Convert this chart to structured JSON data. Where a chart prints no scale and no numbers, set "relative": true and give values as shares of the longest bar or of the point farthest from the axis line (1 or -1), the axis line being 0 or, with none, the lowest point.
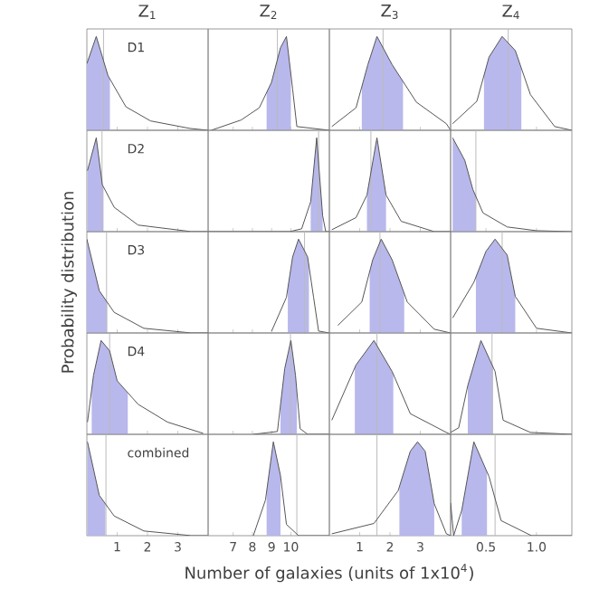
{
  "chart_data": [
    {
      "type": "line",
      "relative": true,
      "title": "Z$_{1}$",
      "annotations": [
        "D1"
      ],
      "xlim": [
        0,
        4
      ],
      "xticks": [
        1,
        2,
        3
      ],
      "tick_labels": false,
      "series": [
        {
          "type": "area",
          "color": "#b8b8ec",
          "x": [
            0,
            0.31,
            0.7,
            0.76
          ],
          "values": [
            0.71,
            1.0,
            0.58,
            0.55
          ]
        },
        {
          "color": "#555555",
          "x": [
            0,
            0.31,
            0.7,
            1.29,
            2.1,
            3.4,
            4
          ],
          "values": [
            0.71,
            1.0,
            0.58,
            0.25,
            0.1,
            0.02,
            0
          ]
        }
      ],
      "ref_lines": [
        {
          "axis": "x",
          "value": 0.55,
          "color": "#bbbbbb"
        }
      ]
    },
    {
      "type": "line",
      "relative": true,
      "title": "Z$_{2}$",
      "xlim": [
        5.7,
        12
      ],
      "xticks": [
        7,
        8,
        9,
        10
      ],
      "tick_labels": false,
      "series": [
        {
          "type": "area",
          "color": "#b8b8ec",
          "x": [
            8.74,
            8.99,
            9.46,
            9.77,
            10.0
          ],
          "values": [
            0.4,
            0.51,
            0.88,
            1.0,
            0.6
          ]
        },
        {
          "color": "#555555",
          "x": [
            5.86,
            7.42,
            8.36,
            8.99,
            9.46,
            9.77,
            10.09,
            10.31,
            12
          ],
          "values": [
            0,
            0.11,
            0.24,
            0.51,
            0.88,
            1.0,
            0.44,
            0.04,
            0
          ]
        }
      ],
      "ref_lines": [
        {
          "axis": "x",
          "value": 9.3,
          "color": "#bbbbbb"
        }
      ]
    },
    {
      "type": "line",
      "relative": true,
      "title": "Z$_{3}$",
      "xlim": [
        0,
        4
      ],
      "xticks": [
        1,
        2,
        3
      ],
      "tick_labels": false,
      "series": [
        {
          "type": "area",
          "color": "#b8b8ec",
          "x": [
            1.07,
            1.27,
            1.57,
            2.07,
            2.43
          ],
          "values": [
            0.46,
            0.7,
            1.0,
            0.7,
            0.52
          ]
        },
        {
          "color": "#555555",
          "x": [
            0.08,
            0.88,
            1.27,
            1.57,
            2.07,
            2.87,
            3.86,
            4
          ],
          "values": [
            0.04,
            0.24,
            0.7,
            1.0,
            0.7,
            0.3,
            0.07,
            0
          ]
        }
      ],
      "ref_lines": [
        {
          "axis": "x",
          "value": 1.77,
          "color": "#bbbbbb"
        }
      ]
    },
    {
      "type": "line",
      "relative": true,
      "title": "Z$_{4}$",
      "xlim": [
        0.15,
        1.35
      ],
      "xticks": [
        0.5,
        1
      ],
      "tick_labels": false,
      "series": [
        {
          "type": "area",
          "color": "#b8b8ec",
          "x": [
            0.48,
            0.53,
            0.66,
            0.79,
            0.85
          ],
          "values": [
            0.58,
            0.78,
            1.0,
            0.85,
            0.66
          ]
        },
        {
          "color": "#555555",
          "x": [
            0.17,
            0.41,
            0.53,
            0.66,
            0.79,
            0.94,
            1.18,
            1.35
          ],
          "values": [
            0.07,
            0.31,
            0.78,
            1.0,
            0.85,
            0.38,
            0.04,
            0
          ]
        }
      ],
      "ref_lines": [
        {
          "axis": "x",
          "value": 0.72,
          "color": "#bbbbbb"
        }
      ]
    },
    {
      "type": "line",
      "relative": true,
      "annotations": [
        "D2"
      ],
      "xlim": [
        0,
        4
      ],
      "xticks": [
        1,
        2,
        3
      ],
      "tick_labels": false,
      "series": [
        {
          "type": "area",
          "color": "#b8b8ec",
          "x": [
            0.02,
            0.31,
            0.51,
            0.55
          ],
          "values": [
            0.65,
            1.0,
            0.5,
            0.48
          ]
        },
        {
          "color": "#555555",
          "x": [
            0.02,
            0.31,
            0.51,
            0.9,
            1.69,
            3.45,
            4
          ],
          "values": [
            0.65,
            1.0,
            0.5,
            0.26,
            0.07,
            0,
            0
          ]
        }
      ],
      "ref_lines": [
        {
          "axis": "x",
          "value": 0.5,
          "color": "#bbbbbb"
        }
      ]
    },
    {
      "type": "line",
      "relative": true,
      "xlim": [
        5.7,
        12
      ],
      "xticks": [
        7,
        8,
        9,
        10
      ],
      "tick_labels": false,
      "series": [
        {
          "type": "area",
          "color": "#b8b8ec",
          "x": [
            11.03,
            11.34,
            11.65
          ],
          "values": [
            0.32,
            1.0,
            0.17
          ]
        },
        {
          "color": "#555555",
          "x": [
            5.7,
            9.93,
            10.56,
            11.03,
            11.34,
            11.65,
            11.81,
            12
          ],
          "values": [
            0,
            0,
            0.03,
            0.32,
            1.0,
            0.17,
            0,
            0
          ]
        }
      ],
      "ref_lines": [
        {
          "axis": "x",
          "value": 11.44,
          "color": "#bbbbbb"
        }
      ]
    },
    {
      "type": "line",
      "relative": true,
      "xlim": [
        0,
        4
      ],
      "xticks": [
        1,
        2,
        3
      ],
      "tick_labels": false,
      "series": [
        {
          "type": "area",
          "color": "#b8b8ec",
          "x": [
            1.24,
            1.57,
            1.87
          ],
          "values": [
            0.39,
            1.0,
            0.39
          ]
        },
        {
          "color": "#555555",
          "x": [
            0.08,
            0.88,
            1.24,
            1.57,
            1.87,
            2.37,
            3.46,
            4
          ],
          "values": [
            0.02,
            0.15,
            0.39,
            1.0,
            0.39,
            0.11,
            0,
            0
          ]
        }
      ],
      "ref_lines": [
        {
          "axis": "x",
          "value": 1.37,
          "color": "#bbbbbb"
        }
      ]
    },
    {
      "type": "line",
      "relative": true,
      "xlim": [
        0.15,
        1.35
      ],
      "xticks": [
        0.5,
        1
      ],
      "tick_labels": false,
      "series": [
        {
          "type": "area",
          "color": "#b8b8ec",
          "x": [
            0.17,
            0.29,
            0.37,
            0.4
          ],
          "values": [
            1.0,
            0.76,
            0.45,
            0.38
          ]
        },
        {
          "color": "#555555",
          "x": [
            0.17,
            0.29,
            0.37,
            0.47,
            0.71,
            1.0,
            1.35
          ],
          "values": [
            1.0,
            0.76,
            0.45,
            0.2,
            0.05,
            0.01,
            0
          ]
        }
      ],
      "ref_lines": [
        {
          "axis": "x",
          "value": 0.4,
          "color": "#bbbbbb"
        }
      ]
    },
    {
      "type": "line",
      "relative": true,
      "annotations": [
        "D3"
      ],
      "ylabel": "Probability distribution",
      "xlim": [
        0,
        4
      ],
      "xticks": [
        1,
        2,
        3
      ],
      "tick_labels": false,
      "series": [
        {
          "type": "area",
          "color": "#b8b8ec",
          "x": [
            0,
            0.41,
            0.67
          ],
          "values": [
            1.0,
            0.45,
            0.33
          ]
        },
        {
          "color": "#555555",
          "x": [
            0,
            0.41,
            0.9,
            1.88,
            3.45,
            4
          ],
          "values": [
            1.0,
            0.45,
            0.22,
            0.05,
            0,
            0
          ]
        }
      ],
      "ref_lines": [
        {
          "axis": "x",
          "value": 0.65,
          "color": "#bbbbbb"
        }
      ]
    },
    {
      "type": "line",
      "relative": true,
      "xlim": [
        5.7,
        12
      ],
      "xticks": [
        7,
        8,
        9,
        10
      ],
      "tick_labels": false,
      "series": [
        {
          "type": "area",
          "color": "#b8b8ec",
          "x": [
            9.84,
            10.09,
            10.4,
            10.87,
            10.94
          ],
          "values": [
            0.47,
            0.81,
            1.0,
            0.81,
            0.71
          ]
        },
        {
          "color": "#555555",
          "x": [
            9.0,
            9.77,
            10.09,
            10.4,
            10.87,
            11.18,
            11.44,
            12
          ],
          "values": [
            0.02,
            0.38,
            0.81,
            1.0,
            0.81,
            0.38,
            0.02,
            0
          ]
        }
      ],
      "ref_lines": [
        {
          "axis": "x",
          "value": 10.71,
          "color": "#bbbbbb"
        }
      ]
    },
    {
      "type": "line",
      "relative": true,
      "xlim": [
        0,
        4
      ],
      "xticks": [
        1,
        2,
        3
      ],
      "tick_labels": false,
      "series": [
        {
          "type": "area",
          "color": "#b8b8ec",
          "x": [
            1.33,
            1.43,
            1.71,
            2.07,
            2.47
          ],
          "values": [
            0.65,
            0.78,
            1.0,
            0.78,
            0.42
          ]
        },
        {
          "color": "#555555",
          "x": [
            0.28,
            1.07,
            1.43,
            1.71,
            2.07,
            2.57,
            3.46,
            4
          ],
          "values": [
            0.08,
            0.33,
            0.78,
            1.0,
            0.78,
            0.33,
            0.04,
            0
          ]
        }
      ],
      "ref_lines": [
        {
          "axis": "x",
          "value": 1.67,
          "color": "#bbbbbb"
        }
      ]
    },
    {
      "type": "line",
      "relative": true,
      "xlim": [
        0.15,
        1.35
      ],
      "xticks": [
        0.5,
        1
      ],
      "tick_labels": false,
      "series": [
        {
          "type": "area",
          "color": "#b8b8ec",
          "x": [
            0.4,
            0.5,
            0.59,
            0.71,
            0.79
          ],
          "values": [
            0.6,
            0.87,
            1.0,
            0.83,
            0.39
          ]
        },
        {
          "color": "#555555",
          "x": [
            0.17,
            0.38,
            0.5,
            0.59,
            0.71,
            0.79,
            1.0,
            1.35
          ],
          "values": [
            0.16,
            0.54,
            0.87,
            1.0,
            0.83,
            0.39,
            0.05,
            0
          ]
        }
      ],
      "ref_lines": [
        {
          "axis": "x",
          "value": 0.66,
          "color": "#bbbbbb"
        }
      ]
    },
    {
      "type": "line",
      "relative": true,
      "annotations": [
        "D4"
      ],
      "xlim": [
        0,
        4
      ],
      "xticks": [
        1,
        2,
        3
      ],
      "tick_labels": false,
      "series": [
        {
          "type": "area",
          "color": "#b8b8ec",
          "x": [
            0.16,
            0.22,
            0.47,
            0.75,
            1.0,
            1.35
          ],
          "values": [
            0.48,
            0.63,
            1.0,
            0.89,
            0.57,
            0.44
          ]
        },
        {
          "color": "#555555",
          "x": [
            0.02,
            0.22,
            0.47,
            0.75,
            1.0,
            1.69,
            2.66,
            3.84
          ],
          "values": [
            0.13,
            0.63,
            1.0,
            0.89,
            0.57,
            0.32,
            0.13,
            0.01
          ]
        }
      ],
      "ref_lines": [
        {
          "axis": "x",
          "value": 0.75,
          "color": "#bbbbbb"
        }
      ]
    },
    {
      "type": "line",
      "relative": true,
      "xlim": [
        5.7,
        12
      ],
      "xticks": [
        7,
        8,
        9,
        10
      ],
      "tick_labels": false,
      "series": [
        {
          "type": "area",
          "color": "#b8b8ec",
          "x": [
            9.46,
            9.68,
            10.0,
            10.24,
            10.31
          ],
          "values": [
            0.31,
            0.7,
            1.0,
            0.63,
            0.46
          ]
        },
        {
          "color": "#555555",
          "x": [
            8.05,
            9.3,
            9.68,
            10.0,
            10.24,
            10.48,
            10.87,
            12
          ],
          "values": [
            0,
            0.03,
            0.7,
            1.0,
            0.63,
            0.06,
            0,
            0
          ]
        }
      ],
      "ref_lines": [
        {
          "axis": "x",
          "value": 9.98,
          "color": "#bbbbbb"
        }
      ]
    },
    {
      "type": "line",
      "relative": true,
      "xlim": [
        0,
        4
      ],
      "xticks": [
        1,
        2,
        3
      ],
      "tick_labels": false,
      "series": [
        {
          "type": "area",
          "color": "#b8b8ec",
          "x": [
            0.84,
            0.88,
            1.47,
            2.07,
            2.11
          ],
          "values": [
            0.71,
            0.74,
            1.0,
            0.67,
            0.64
          ]
        },
        {
          "color": "#555555",
          "x": [
            0.08,
            0.88,
            1.47,
            2.07,
            2.67,
            3.86,
            4
          ],
          "values": [
            0.15,
            0.74,
            1.0,
            0.67,
            0.22,
            0.02,
            0
          ]
        }
      ],
      "ref_lines": [
        {
          "axis": "x",
          "value": 1.57,
          "color": "#bbbbbb"
        }
      ]
    },
    {
      "type": "line",
      "relative": true,
      "xlim": [
        0.15,
        1.35
      ],
      "xticks": [
        0.5,
        1
      ],
      "tick_labels": false,
      "series": [
        {
          "type": "area",
          "color": "#b8b8ec",
          "x": [
            0.32,
            0.45,
            0.57
          ],
          "values": [
            0.52,
            1.0,
            0.72
          ]
        },
        {
          "color": "#555555",
          "x": [
            0.15,
            0.23,
            0.32,
            0.45,
            0.59,
            0.67,
            0.94,
            1.35
          ],
          "values": [
            0.02,
            0.07,
            0.52,
            1.0,
            0.67,
            0.15,
            0.02,
            0
          ]
        }
      ],
      "ref_lines": [
        {
          "axis": "x",
          "value": 0.56,
          "color": "#bbbbbb"
        }
      ]
    },
    {
      "type": "line",
      "relative": true,
      "annotations": [
        "combined"
      ],
      "xlim": [
        0,
        4
      ],
      "xticks": [
        1,
        2,
        3
      ],
      "tick_labels": "x",
      "series": [
        {
          "type": "area",
          "color": "#b8b8ec",
          "x": [
            0.02,
            0.41,
            0.61
          ],
          "values": [
            1.0,
            0.43,
            0.34
          ]
        },
        {
          "color": "#555555",
          "x": [
            0.02,
            0.41,
            0.9,
            1.88,
            3.45,
            4
          ],
          "values": [
            1.0,
            0.43,
            0.21,
            0.05,
            0,
            0
          ]
        }
      ],
      "ref_lines": [
        {
          "axis": "x",
          "value": 0.63,
          "color": "#bbbbbb"
        }
      ]
    },
    {
      "type": "line",
      "relative": true,
      "xlabel": "Number of galaxies (units of 1x10$^{4}$)",
      "xlim": [
        5.7,
        12
      ],
      "xticks": [
        7,
        8,
        9,
        10
      ],
      "tick_labels": "x",
      "series": [
        {
          "type": "area",
          "color": "#b8b8ec",
          "x": [
            8.74,
            9.09,
            9.46
          ],
          "values": [
            0.47,
            1.0,
            0.64
          ]
        },
        {
          "color": "#555555",
          "x": [
            8.05,
            8.68,
            9.09,
            9.46,
            9.77,
            10.4,
            12
          ],
          "values": [
            0,
            0.38,
            1.0,
            0.64,
            0.12,
            0,
            0
          ]
        }
      ],
      "ref_lines": [
        {
          "axis": "x",
          "value": 10.31,
          "color": "#bbbbbb"
        }
      ]
    },
    {
      "type": "line",
      "relative": true,
      "xlim": [
        0,
        4
      ],
      "xticks": [
        1,
        2,
        3
      ],
      "tick_labels": "x",
      "series": [
        {
          "type": "area",
          "color": "#b8b8ec",
          "x": [
            2.31,
            2.67,
            2.91,
            3.16,
            3.46
          ],
          "values": [
            0.52,
            0.9,
            1.0,
            0.9,
            0.34
          ]
        },
        {
          "color": "#555555",
          "x": [
            0.08,
            1.47,
            2.27,
            2.67,
            2.91,
            3.16,
            3.46,
            3.86,
            4
          ],
          "values": [
            0.02,
            0.13,
            0.48,
            0.9,
            1.0,
            0.9,
            0.34,
            0.02,
            0
          ]
        }
      ],
      "ref_lines": [
        {
          "axis": "x",
          "value": 1.57,
          "color": "#bbbbbb"
        }
      ]
    },
    {
      "type": "line",
      "relative": true,
      "xlim": [
        0.15,
        1.35
      ],
      "xticks": [
        {
          "value": 0.5,
          "label": "0.5"
        },
        {
          "value": 1.0,
          "label": "1.0"
        }
      ],
      "tick_labels": "x",
      "series": [
        {
          "type": "area",
          "color": "#b8b8ec",
          "x": [
            0.26,
            0.38,
            0.51
          ],
          "values": [
            0.27,
            1.0,
            0.68
          ]
        },
        {
          "color": "#555555",
          "x": [
            0.15,
            0.18,
            0.26,
            0.38,
            0.53,
            0.65,
            0.95,
            1.35
          ],
          "values": [
            0.35,
            0,
            0.27,
            1.0,
            0.63,
            0.16,
            0,
            0
          ]
        }
      ],
      "ref_lines": [
        {
          "axis": "x",
          "value": 0.59,
          "color": "#bbbbbb"
        }
      ]
    }
  ]
}
